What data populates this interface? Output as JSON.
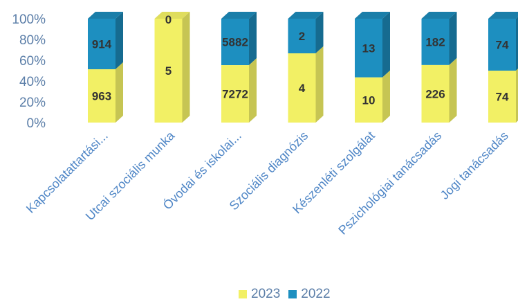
{
  "chart_data": {
    "type": "bar",
    "stacked": "percent",
    "categories": [
      "Kapcsolatattartási...",
      "Utcai szociális munka",
      "Óvodai és iskolai...",
      "Szociális diagnózis",
      "Készenléti szolgálat",
      "Pszichológiai tanácsadás",
      "Jogi tanácsadás"
    ],
    "series": [
      {
        "name": "2023",
        "color": "#f2f065",
        "values": [
          963,
          5,
          7272,
          4,
          10,
          226,
          74
        ]
      },
      {
        "name": "2022",
        "color": "#1d8fc0",
        "values": [
          914,
          0,
          5882,
          2,
          13,
          182,
          74
        ]
      }
    ],
    "y_ticks": [
      "0%",
      "20%",
      "40%",
      "60%",
      "80%",
      "100%"
    ],
    "ylim": [
      0,
      100
    ],
    "legend_position": "bottom",
    "grid": false
  }
}
